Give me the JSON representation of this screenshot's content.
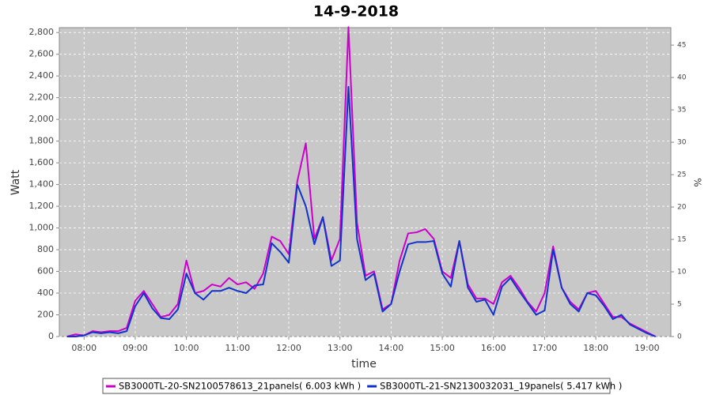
{
  "chart_data": {
    "type": "line",
    "title": "14-9-2018",
    "x_label": "time",
    "y_label": "Watt",
    "y2_label": "%",
    "x": [
      460,
      470,
      480,
      490,
      500,
      510,
      520,
      530,
      540,
      550,
      560,
      570,
      580,
      590,
      600,
      610,
      620,
      630,
      640,
      650,
      660,
      670,
      680,
      690,
      700,
      710,
      720,
      730,
      740,
      750,
      760,
      770,
      780,
      790,
      800,
      810,
      820,
      830,
      840,
      850,
      860,
      870,
      880,
      890,
      900,
      910,
      920,
      930,
      940,
      950,
      960,
      970,
      980,
      990,
      1000,
      1010,
      1020,
      1030,
      1040,
      1050,
      1060,
      1070,
      1080,
      1090,
      1100,
      1110,
      1120,
      1130,
      1140,
      1150
    ],
    "series": [
      {
        "name": "SB3000TL-20-SN2100578613_21panels( 6.003 kWh )",
        "color": "#cc00cc",
        "values": [
          0,
          20,
          10,
          50,
          40,
          50,
          50,
          80,
          330,
          420,
          300,
          180,
          200,
          300,
          700,
          400,
          420,
          480,
          460,
          540,
          480,
          500,
          440,
          580,
          920,
          880,
          760,
          1430,
          1780,
          900,
          1100,
          700,
          900,
          2850,
          1050,
          560,
          600,
          250,
          300,
          700,
          950,
          960,
          990,
          900,
          600,
          540,
          880,
          480,
          350,
          350,
          300,
          500,
          560,
          450,
          320,
          230,
          400,
          830,
          450,
          320,
          250,
          400,
          420,
          300,
          180,
          180,
          120,
          80,
          40,
          0
        ]
      },
      {
        "name": "SB3000TL-21-SN2130032031_19panels( 5.417 kWh )",
        "color": "#1133cc",
        "values": [
          0,
          0,
          10,
          40,
          30,
          40,
          30,
          50,
          280,
          400,
          260,
          170,
          160,
          250,
          580,
          400,
          340,
          420,
          420,
          450,
          420,
          400,
          470,
          480,
          860,
          780,
          680,
          1400,
          1200,
          850,
          1100,
          650,
          700,
          2300,
          900,
          520,
          580,
          230,
          300,
          600,
          850,
          870,
          870,
          880,
          580,
          460,
          880,
          450,
          320,
          340,
          200,
          460,
          540,
          420,
          310,
          200,
          240,
          800,
          450,
          300,
          230,
          400,
          380,
          280,
          160,
          200,
          110,
          70,
          30,
          0
        ]
      }
    ],
    "xlim": [
      451,
      1168
    ],
    "xticks": [
      {
        "value": 480,
        "label": "08:00"
      },
      {
        "value": 540,
        "label": "09:00"
      },
      {
        "value": 600,
        "label": "10:00"
      },
      {
        "value": 660,
        "label": "11:00"
      },
      {
        "value": 720,
        "label": "12:00"
      },
      {
        "value": 780,
        "label": "13:00"
      },
      {
        "value": 840,
        "label": "14:00"
      },
      {
        "value": 900,
        "label": "15:00"
      },
      {
        "value": 960,
        "label": "16:00"
      },
      {
        "value": 1020,
        "label": "17:00"
      },
      {
        "value": 1080,
        "label": "18:00"
      },
      {
        "value": 1140,
        "label": "19:00"
      }
    ],
    "ylim": [
      0,
      2845
    ],
    "yticks": [
      0,
      200,
      400,
      600,
      800,
      {
        "value": 1000,
        "label": "1,000"
      },
      {
        "value": 1200,
        "label": "1,200"
      },
      {
        "value": 1400,
        "label": "1,400"
      },
      {
        "value": 1600,
        "label": "1,600"
      },
      {
        "value": 1800,
        "label": "1,800"
      },
      {
        "value": 2000,
        "label": "2,000"
      },
      {
        "value": 2200,
        "label": "2,200"
      },
      {
        "value": 2400,
        "label": "2,400"
      },
      {
        "value": 2600,
        "label": "2,600"
      },
      {
        "value": 2800,
        "label": "2,800"
      }
    ],
    "y2lim": [
      0,
      47.7
    ],
    "y2ticks": [
      0,
      5,
      10,
      15,
      20,
      25,
      30,
      35,
      40,
      45
    ],
    "grid": true
  }
}
